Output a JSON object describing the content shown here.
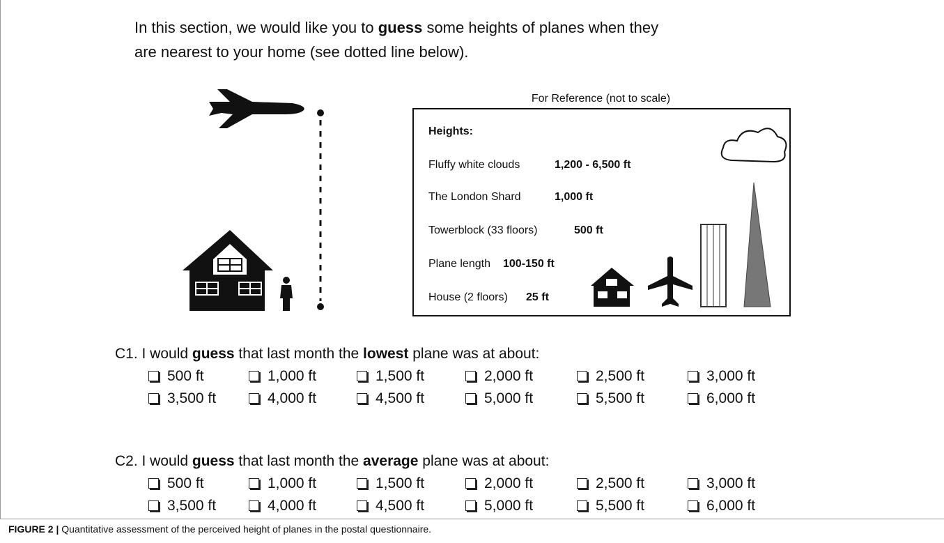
{
  "intro": [
    {
      "text": "In this section, we would like you to ",
      "bold": false
    },
    {
      "text": "guess",
      "bold": true
    },
    {
      "text": " some heights of planes when they are nearest to your home (see dotted line below).",
      "bold": false
    }
  ],
  "reference": {
    "title": "For Reference (not to scale)",
    "heading": "Heights:",
    "rows": [
      {
        "label": "Fluffy white clouds",
        "value": "1,200 - 6,500 ft"
      },
      {
        "label": "The London Shard",
        "value": "1,000 ft"
      },
      {
        "label": "Towerblock (33 floors)",
        "value": "500 ft"
      },
      {
        "label": "Plane length",
        "value": "100-150 ft"
      },
      {
        "label": "House (2 floors)",
        "value": "25 ft"
      }
    ]
  },
  "questions": [
    {
      "parts": [
        {
          "text": "C1. I would ",
          "bold": false
        },
        {
          "text": "guess",
          "bold": true
        },
        {
          "text": " that last month the ",
          "bold": false
        },
        {
          "text": "lowest",
          "bold": true
        },
        {
          "text": " plane was at about:",
          "bold": false
        }
      ],
      "options": [
        "500 ft",
        "1,000 ft",
        "1,500 ft",
        "2,000 ft",
        "2,500 ft",
        "3,000 ft",
        "3,500 ft",
        "4,000 ft",
        "4,500 ft",
        "5,000 ft",
        "5,500 ft",
        "6,000 ft"
      ]
    },
    {
      "parts": [
        {
          "text": "C2. I would ",
          "bold": false
        },
        {
          "text": "guess",
          "bold": true
        },
        {
          "text": " that last month the ",
          "bold": false
        },
        {
          "text": "average",
          "bold": true
        },
        {
          "text": " plane was at about:",
          "bold": false
        }
      ],
      "options": [
        "500 ft",
        "1,000 ft",
        "1,500 ft",
        "2,000 ft",
        "2,500 ft",
        "3,000 ft",
        "3,500 ft",
        "4,000 ft",
        "4,500 ft",
        "5,000 ft",
        "5,500 ft",
        "6,000 ft"
      ]
    }
  ],
  "caption": [
    {
      "text": "FIGURE 2 |",
      "bold": true
    },
    {
      "text": " Quantitative assessment of the perceived height of planes in the postal questionnaire.",
      "bold": false
    }
  ]
}
